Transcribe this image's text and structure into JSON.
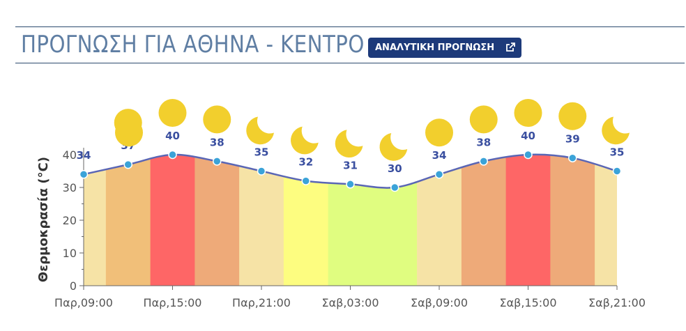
{
  "header": {
    "title": "ΠΡΟΓΝΩΣΗ ΓΙΑ ΑΘΗΝΑ - ΚΕΝΤΡΟ",
    "button_label": "ΑΝΑΛΥΤΙΚΗ ΠΡΟΓΝΩΣΗ",
    "button_icon": "external-link-icon"
  },
  "colors": {
    "rule": "#2c4a6e",
    "title": "#5f7ea3",
    "button_bg": "#1d3a7a",
    "line": "#5a66b5",
    "marker": "#3ba3d8",
    "sun": "#f2cf2d",
    "moon": "#f2cf2d"
  },
  "chart_data": {
    "type": "area",
    "ylabel": "Θερμοκρασία (°C)",
    "ylim": [
      0,
      40
    ],
    "yticks": [
      0,
      10,
      20,
      30,
      40
    ],
    "x_tick_labels": [
      "Παρ,09:00",
      "Παρ,15:00",
      "Παρ,21:00",
      "Σαβ,03:00",
      "Σαβ,09:00",
      "Σαβ,15:00",
      "Σαβ,21:00"
    ],
    "points": [
      {
        "time": "Παρ,09:00",
        "temp": 34,
        "icon": "sun-icon"
      },
      {
        "time": "Παρ,12:00",
        "temp": 37,
        "icon": "sun-icon"
      },
      {
        "time": "Παρ,15:00",
        "temp": 40,
        "icon": "sun-icon"
      },
      {
        "time": "Παρ,18:00",
        "temp": 38,
        "icon": "sun-icon"
      },
      {
        "time": "Παρ,21:00",
        "temp": 35,
        "icon": "moon-icon"
      },
      {
        "time": "Σαβ,00:00",
        "temp": 32,
        "icon": "moon-icon"
      },
      {
        "time": "Σαβ,03:00",
        "temp": 31,
        "icon": "moon-icon"
      },
      {
        "time": "Σαβ,06:00",
        "temp": 30,
        "icon": "moon-icon"
      },
      {
        "time": "Σαβ,09:00",
        "temp": 34,
        "icon": "sun-icon"
      },
      {
        "time": "Σαβ,12:00",
        "temp": 38,
        "icon": "sun-icon"
      },
      {
        "time": "Σαβ,15:00",
        "temp": 40,
        "icon": "sun-icon"
      },
      {
        "time": "Σαβ,18:00",
        "temp": 39,
        "icon": "sun-icon"
      },
      {
        "time": "Σαβ,21:00",
        "temp": 35,
        "icon": "moon-icon"
      }
    ],
    "band_colors": [
      "#f6e3a6",
      "#f1bf79",
      "#fe6666",
      "#eeaa79",
      "#f6e3a6",
      "#fdfd80",
      "#e0fd80",
      "#e0fd80",
      "#f6e3a6",
      "#eeaa79",
      "#fe6666",
      "#eeaa79",
      "#f6e3a6"
    ]
  }
}
